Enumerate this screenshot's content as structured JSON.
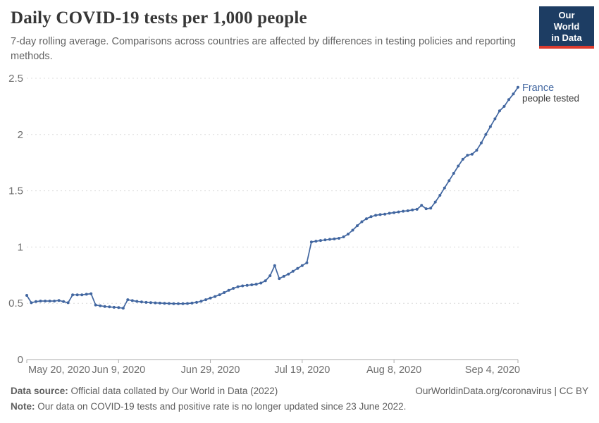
{
  "header": {
    "title": "Daily COVID-19 tests per 1,000 people",
    "subtitle": "7-day rolling average. Comparisons across countries are affected by differences in testing policies and reporting methods.",
    "logo": {
      "line1": "Our World",
      "line2": "in Data"
    }
  },
  "colors": {
    "series_blue": "#4166a0",
    "logo_background": "#1d3d63",
    "logo_stripe": "#dc3b2e",
    "gridline": "#dcdcdc",
    "axis": "#ababab",
    "axis_label": "#6e6e6e",
    "sublabel_text": "#3c3c3c"
  },
  "chart_data": {
    "type": "line",
    "title": "Daily COVID-19 tests per 1,000 people",
    "xlabel": "",
    "ylabel": "",
    "ylim": [
      0,
      2.5
    ],
    "yticks": [
      0,
      0.5,
      1,
      1.5,
      2,
      2.5
    ],
    "grid": "horizontal-dashed",
    "legend_position": "end-of-line",
    "x_start_date": "May 20, 2020",
    "x_end_date": "Sep 4, 2020",
    "xticks": [
      {
        "label": "May 20, 2020",
        "index": 0,
        "align": "start"
      },
      {
        "label": "Jun 9, 2020",
        "index": 20,
        "align": "middle"
      },
      {
        "label": "Jun 29, 2020",
        "index": 40,
        "align": "middle"
      },
      {
        "label": "Jul 19, 2020",
        "index": 60,
        "align": "middle"
      },
      {
        "label": "Aug 8, 2020",
        "index": 80,
        "align": "middle"
      },
      {
        "label": "Sep 4, 2020",
        "index": 107,
        "align": "end"
      }
    ],
    "series": [
      {
        "name": "France",
        "sublabel": "people tested",
        "color": "#4166a0",
        "values": [
          0.57,
          0.505,
          0.515,
          0.52,
          0.52,
          0.52,
          0.52,
          0.525,
          0.515,
          0.505,
          0.575,
          0.575,
          0.575,
          0.58,
          0.585,
          0.485,
          0.478,
          0.472,
          0.468,
          0.464,
          0.462,
          0.457,
          0.532,
          0.524,
          0.517,
          0.512,
          0.508,
          0.506,
          0.504,
          0.502,
          0.5,
          0.498,
          0.497,
          0.496,
          0.496,
          0.498,
          0.502,
          0.508,
          0.518,
          0.532,
          0.547,
          0.56,
          0.576,
          0.595,
          0.615,
          0.633,
          0.647,
          0.655,
          0.66,
          0.664,
          0.67,
          0.68,
          0.7,
          0.745,
          0.835,
          0.72,
          0.74,
          0.76,
          0.785,
          0.81,
          0.835,
          0.86,
          1.045,
          1.052,
          1.058,
          1.063,
          1.068,
          1.072,
          1.078,
          1.09,
          1.115,
          1.15,
          1.19,
          1.225,
          1.252,
          1.27,
          1.282,
          1.288,
          1.292,
          1.3,
          1.306,
          1.312,
          1.318,
          1.322,
          1.33,
          1.335,
          1.37,
          1.34,
          1.345,
          1.4,
          1.46,
          1.525,
          1.59,
          1.655,
          1.72,
          1.78,
          1.815,
          1.825,
          1.86,
          1.925,
          2.0,
          2.07,
          2.14,
          2.21,
          2.25,
          2.31,
          2.36,
          2.42
        ]
      }
    ]
  },
  "footer": {
    "data_source_label": "Data source:",
    "data_source_text": "Official data collated by Our World in Data (2022)",
    "link_text": "OurWorldinData.org/coronavirus | CC BY",
    "note_label": "Note:",
    "note_text": "Our data on COVID-19 tests and positive rate is no longer updated since 23 June 2022."
  }
}
